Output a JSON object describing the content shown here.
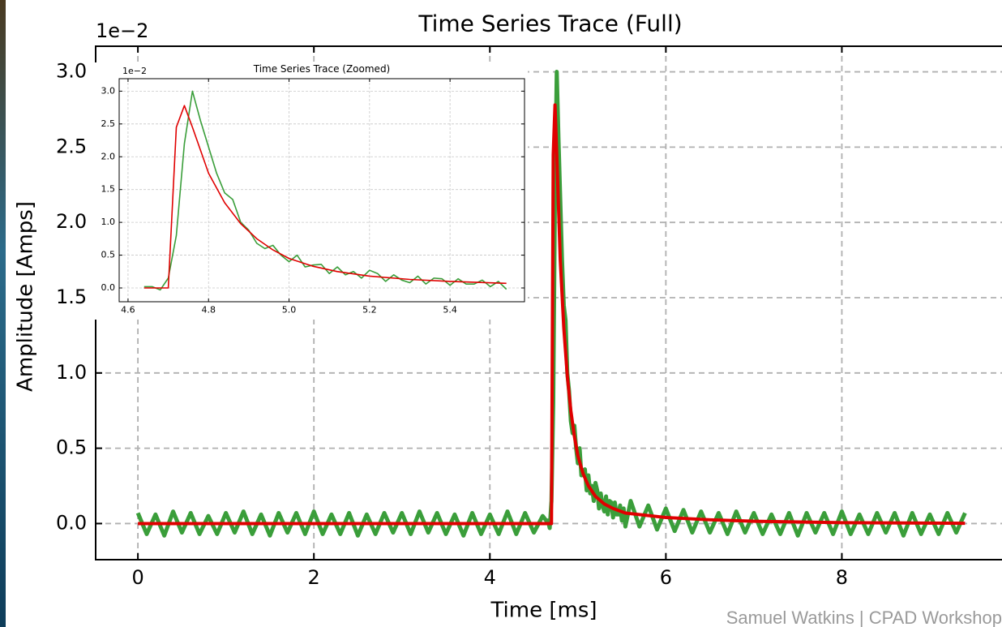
{
  "chart_data": [
    {
      "type": "line",
      "title": "Time Series Trace (Full)",
      "x_label": "Time [ms]",
      "y_label": "Amplitude [Amps]",
      "offset_label": "1e−2",
      "xlim": [
        -0.48,
        9.82
      ],
      "ylim": [
        -0.24,
        3.17
      ],
      "xticks": [
        0,
        2,
        4,
        6,
        8
      ],
      "yticks": [
        {
          "value": 0,
          "label": "0.0"
        },
        0.5,
        {
          "value": 1,
          "label": "1.0"
        },
        1.5,
        {
          "value": 2,
          "label": "2.0"
        },
        2.5,
        {
          "value": 3,
          "label": "3.0"
        }
      ],
      "grid": true,
      "series": [
        {
          "color": "#3a9e3a",
          "x": [
            0,
            0.1,
            0.2,
            0.3,
            0.4,
            0.5,
            0.6,
            0.7,
            0.8,
            0.9,
            1,
            1.1,
            1.2,
            1.3,
            1.4,
            1.5,
            1.6,
            1.7,
            1.8,
            1.9,
            2,
            2.1,
            2.2,
            2.3,
            2.4,
            2.5,
            2.6,
            2.7,
            2.8,
            2.9,
            3,
            3.1,
            3.2,
            3.3,
            3.4,
            3.5,
            3.6,
            3.7,
            3.8,
            3.9,
            4,
            4.1,
            4.2,
            4.3,
            4.4,
            4.5,
            4.6,
            4.64,
            4.66,
            4.68,
            4.7,
            4.72,
            4.74,
            4.76,
            4.78,
            4.8,
            4.82,
            4.84,
            4.86,
            4.88,
            4.9,
            4.92,
            4.94,
            4.96,
            4.98,
            5,
            5.02,
            5.04,
            5.06,
            5.08,
            5.1,
            5.12,
            5.14,
            5.16,
            5.18,
            5.2,
            5.22,
            5.24,
            5.26,
            5.28,
            5.3,
            5.32,
            5.34,
            5.36,
            5.38,
            5.4,
            5.42,
            5.44,
            5.46,
            5.48,
            5.5,
            5.52,
            5.54,
            5.6,
            5.7,
            5.8,
            5.9,
            6,
            6.1,
            6.2,
            6.3,
            6.4,
            6.5,
            6.6,
            6.7,
            6.8,
            6.9,
            7,
            7.1,
            7.2,
            7.3,
            7.4,
            7.5,
            7.6,
            7.7,
            7.8,
            7.9,
            8,
            8.1,
            8.2,
            8.3,
            8.4,
            8.5,
            8.6,
            8.7,
            8.8,
            8.9,
            9,
            9.1,
            9.2,
            9.3,
            9.4
          ],
          "values": [
            0.07,
            -0.07,
            0.06,
            -0.08,
            0.08,
            -0.06,
            0.07,
            -0.07,
            0.05,
            -0.07,
            0.07,
            -0.06,
            0.08,
            -0.07,
            0.06,
            -0.08,
            0.07,
            -0.06,
            0.07,
            -0.07,
            0.08,
            -0.07,
            0.06,
            -0.07,
            0.07,
            -0.08,
            0.06,
            -0.07,
            0.07,
            -0.06,
            0.07,
            -0.07,
            0.08,
            -0.06,
            0.07,
            -0.07,
            0.06,
            -0.08,
            0.07,
            -0.07,
            0.06,
            -0.07,
            0.08,
            -0.07,
            0.07,
            -0.06,
            0.05,
            0.02,
            0.02,
            -0.03,
            0.15,
            0.8,
            2.2,
            3.0,
            2.55,
            2.15,
            1.75,
            1.45,
            1.35,
            1.0,
            0.88,
            0.68,
            0.6,
            0.65,
            0.5,
            0.4,
            0.5,
            0.32,
            0.35,
            0.36,
            0.22,
            0.32,
            0.2,
            0.25,
            0.15,
            0.27,
            0.22,
            0.1,
            0.2,
            0.12,
            0.08,
            0.18,
            0.06,
            0.15,
            0.14,
            0.04,
            0.14,
            0.06,
            0.06,
            0.12,
            0.02,
            0.1,
            -0.02,
            0.15,
            -0.02,
            0.12,
            -0.04,
            0.1,
            -0.05,
            0.09,
            -0.06,
            0.08,
            -0.06,
            0.07,
            -0.07,
            0.08,
            -0.06,
            0.07,
            -0.07,
            0.06,
            -0.07,
            0.07,
            -0.08,
            0.07,
            -0.06,
            0.07,
            -0.07,
            0.08,
            -0.07,
            0.06,
            -0.07,
            0.07,
            -0.06,
            0.07,
            -0.08,
            0.07,
            -0.07,
            0.06,
            -0.07,
            0.07,
            -0.06,
            0.07
          ]
        },
        {
          "color": "#e00000",
          "x": [
            0,
            4.7,
            4.72,
            4.74,
            4.76,
            4.78,
            4.8,
            4.84,
            4.88,
            4.92,
            4.96,
            5,
            5.06,
            5.12,
            5.2,
            5.3,
            5.4,
            5.54,
            6,
            6.5,
            7,
            8,
            9.4
          ],
          "values": [
            0,
            0,
            2.45,
            2.78,
            2.45,
            2.1,
            1.75,
            1.3,
            0.98,
            0.75,
            0.58,
            0.45,
            0.33,
            0.25,
            0.18,
            0.13,
            0.1,
            0.07,
            0.04,
            0.025,
            0.015,
            0.006,
            0.002
          ]
        }
      ]
    },
    {
      "type": "line",
      "title": "Time Series Trace (Zoomed)",
      "offset_label": "1e−2",
      "xlim": [
        4.578,
        5.585
      ],
      "ylim": [
        -0.21,
        3.19
      ],
      "xticks": [
        4.6,
        4.8,
        {
          "value": 5,
          "label": "5.0"
        },
        5.2,
        5.4
      ],
      "yticks": [
        {
          "value": 0,
          "label": "0.0"
        },
        0.5,
        {
          "value": 1,
          "label": "1.0"
        },
        1.5,
        {
          "value": 2,
          "label": "2.0"
        },
        2.5,
        {
          "value": 3,
          "label": "3.0"
        }
      ],
      "grid": true,
      "series": [
        {
          "color": "#3a9e3a",
          "x": [
            4.64,
            4.66,
            4.68,
            4.7,
            4.72,
            4.74,
            4.76,
            4.78,
            4.8,
            4.82,
            4.84,
            4.86,
            4.88,
            4.9,
            4.92,
            4.94,
            4.96,
            4.98,
            5,
            5.02,
            5.04,
            5.06,
            5.08,
            5.1,
            5.12,
            5.14,
            5.16,
            5.18,
            5.2,
            5.22,
            5.24,
            5.26,
            5.28,
            5.3,
            5.32,
            5.34,
            5.36,
            5.38,
            5.4,
            5.42,
            5.44,
            5.46,
            5.48,
            5.5,
            5.52,
            5.54
          ],
          "values": [
            0.02,
            0.02,
            -0.03,
            0.15,
            0.8,
            2.2,
            3.0,
            2.55,
            2.15,
            1.75,
            1.45,
            1.35,
            1.0,
            0.88,
            0.68,
            0.6,
            0.65,
            0.5,
            0.4,
            0.5,
            0.32,
            0.35,
            0.36,
            0.22,
            0.32,
            0.2,
            0.25,
            0.15,
            0.27,
            0.22,
            0.1,
            0.2,
            0.12,
            0.08,
            0.18,
            0.06,
            0.15,
            0.14,
            0.04,
            0.14,
            0.06,
            0.06,
            0.12,
            0.02,
            0.1,
            -0.02
          ]
        },
        {
          "color": "#e00000",
          "x": [
            4.64,
            4.7,
            4.72,
            4.74,
            4.76,
            4.78,
            4.8,
            4.84,
            4.88,
            4.92,
            4.96,
            5,
            5.06,
            5.12,
            5.2,
            5.3,
            5.4,
            5.54
          ],
          "values": [
            0,
            0,
            2.45,
            2.78,
            2.45,
            2.1,
            1.75,
            1.3,
            0.98,
            0.75,
            0.58,
            0.45,
            0.33,
            0.25,
            0.18,
            0.13,
            0.1,
            0.07
          ]
        }
      ]
    }
  ],
  "footer": "Samuel Watkins | CPAD Workshop"
}
